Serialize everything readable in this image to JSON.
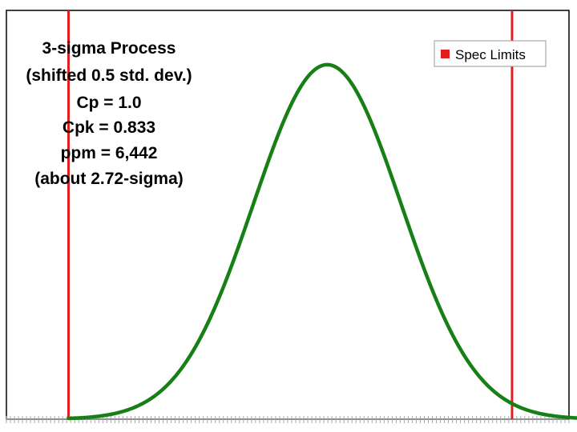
{
  "chart_data": {
    "type": "line",
    "xlim": [
      -3.84,
      3.77
    ],
    "ylim": [
      0,
      0.46
    ],
    "process": {
      "mean": 0.5,
      "sd": 1.0
    },
    "spec_limits": {
      "name": "Spec Limits",
      "values": [
        -3,
        3
      ],
      "color": "#e21d1d"
    },
    "series": [
      {
        "x": [
          -3.0,
          -2.5,
          -2.0,
          -1.5,
          -1.0,
          -0.5,
          0.0,
          0.5,
          1.0,
          1.5,
          2.0,
          2.5,
          3.0,
          3.5,
          4.0
        ],
        "values": [
          0.0009,
          0.0044,
          0.0175,
          0.054,
          0.1295,
          0.242,
          0.352,
          0.399,
          0.352,
          0.242,
          0.1295,
          0.054,
          0.0175,
          0.0044,
          0.0009
        ],
        "color": "#168016"
      }
    ],
    "annotation": [
      "3-sigma Process",
      "(shifted 0.5 std. dev.)",
      "Cp = 1.0",
      "Cpk = 0.833",
      "ppm = 6,442",
      "(about 2.72-sigma)"
    ],
    "legend": {
      "placement": "top-right",
      "label": "Spec Limits"
    },
    "grid": false
  }
}
